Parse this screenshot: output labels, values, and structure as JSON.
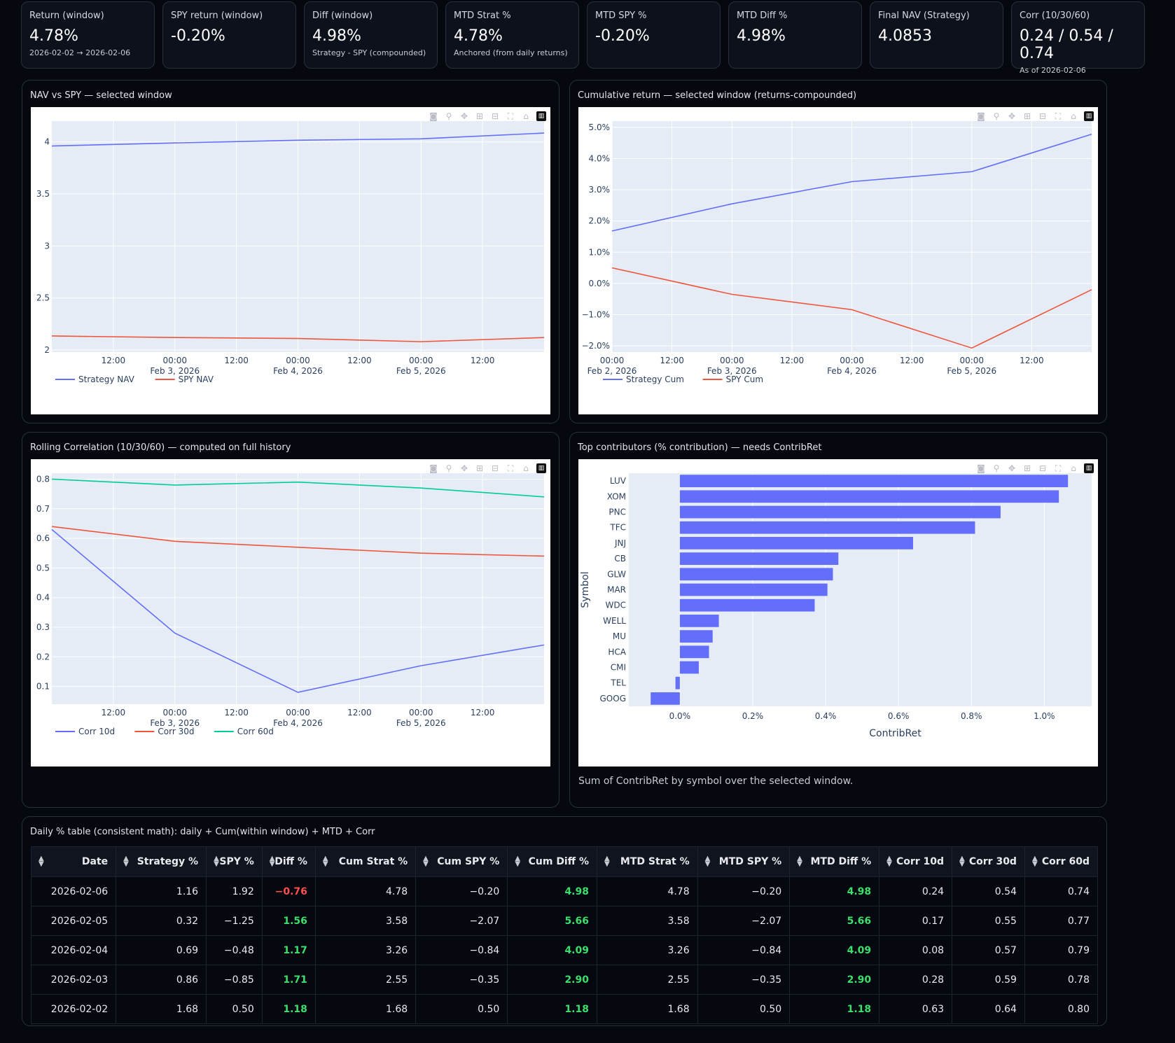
{
  "kpis": [
    {
      "label": "Return (window)",
      "value": "4.78%",
      "sub": "2026-02-02 → 2026-02-06"
    },
    {
      "label": "SPY return (window)",
      "value": "-0.20%",
      "sub": ""
    },
    {
      "label": "Diff (window)",
      "value": "4.98%",
      "sub": "Strategy - SPY (compounded)"
    },
    {
      "label": "MTD Strat %",
      "value": "4.78%",
      "sub": "Anchored (from daily returns)"
    },
    {
      "label": "MTD SPY %",
      "value": "-0.20%",
      "sub": ""
    },
    {
      "label": "MTD Diff %",
      "value": "4.98%",
      "sub": ""
    },
    {
      "label": "Final NAV (Strategy)",
      "value": "4.0853",
      "sub": ""
    },
    {
      "label": "Corr (10/30/60)",
      "value": "0.24 / 0.54 / 0.74",
      "sub": "As of 2026-02-06"
    }
  ],
  "panels": {
    "nav": {
      "title": "NAV vs SPY — selected window"
    },
    "cum": {
      "title": "Cumulative return — selected window (returns-compounded)"
    },
    "corr": {
      "title": "Rolling Correlation (10/30/60) — computed on full history"
    },
    "contrib": {
      "title": "Top contributors (% contribution) — needs ContribRet",
      "note": "Sum of ContribRet by symbol over the selected window."
    },
    "table": {
      "title": "Daily % table (consistent math): daily + Cum(within window) + MTD + Corr"
    }
  },
  "colors": {
    "blue": "#636efa",
    "red": "#ef553b",
    "green": "#00cc96",
    "pos": "#3dde6b",
    "neg": "#ff4f4f"
  },
  "modebar_icons": [
    "camera-icon",
    "zoom-icon",
    "pan-icon",
    "zoom-in-icon",
    "zoom-out-icon",
    "autoscale-icon",
    "home-icon",
    "plotly-logo-icon"
  ],
  "chart_data": [
    {
      "id": "nav",
      "type": "line",
      "x_hours": [
        0,
        24,
        48,
        72,
        96
      ],
      "x_tick_hours": [
        12,
        24,
        36,
        48,
        60,
        72,
        84
      ],
      "x_tick_labels": [
        [
          "12:00",
          ""
        ],
        [
          "00:00",
          "Feb 3, 2026"
        ],
        [
          "12:00",
          ""
        ],
        [
          "00:00",
          "Feb 4, 2026"
        ],
        [
          "12:00",
          ""
        ],
        [
          "00:00",
          "Feb 5, 2026"
        ],
        [
          "12:00",
          ""
        ]
      ],
      "xlim": [
        0,
        96
      ],
      "ylim": [
        1.98,
        4.2
      ],
      "y_ticks": [
        2,
        2.5,
        3,
        3.5,
        4
      ],
      "y_tick_labels": [
        "2",
        "2.5",
        "3",
        "3.5",
        "4"
      ],
      "series": [
        {
          "name": "Strategy NAV",
          "color": "#636efa",
          "values": [
            3.961,
            3.99,
            4.016,
            4.03,
            4.085
          ]
        },
        {
          "name": "SPY NAV",
          "color": "#ef553b",
          "values": [
            2.135,
            2.12,
            2.111,
            2.08,
            2.12
          ]
        }
      ]
    },
    {
      "id": "cum",
      "type": "line",
      "x_hours": [
        0,
        24,
        48,
        72,
        96
      ],
      "x_tick_hours": [
        0,
        12,
        24,
        36,
        48,
        60,
        72,
        84
      ],
      "x_tick_labels": [
        [
          "00:00",
          "Feb 2, 2026"
        ],
        [
          "12:00",
          ""
        ],
        [
          "00:00",
          "Feb 3, 2026"
        ],
        [
          "12:00",
          ""
        ],
        [
          "00:00",
          "Feb 4, 2026"
        ],
        [
          "12:00",
          ""
        ],
        [
          "00:00",
          "Feb 5, 2026"
        ],
        [
          "12:00",
          ""
        ]
      ],
      "xlim": [
        0,
        96
      ],
      "ylim": [
        -2.2,
        5.2
      ],
      "y_ticks": [
        -2,
        -1,
        0,
        1,
        2,
        3,
        4,
        5
      ],
      "y_tick_labels": [
        "−2.0%",
        "−1.0%",
        "0.0%",
        "1.0%",
        "2.0%",
        "3.0%",
        "4.0%",
        "5.0%"
      ],
      "series": [
        {
          "name": "Strategy Cum",
          "color": "#636efa",
          "values": [
            1.68,
            2.55,
            3.26,
            3.58,
            4.78
          ]
        },
        {
          "name": "SPY Cum",
          "color": "#ef553b",
          "values": [
            0.5,
            -0.35,
            -0.84,
            -2.07,
            -0.2
          ]
        }
      ]
    },
    {
      "id": "corr",
      "type": "line",
      "x_hours": [
        0,
        24,
        48,
        72,
        96
      ],
      "x_tick_hours": [
        12,
        24,
        36,
        48,
        60,
        72,
        84
      ],
      "x_tick_labels": [
        [
          "12:00",
          ""
        ],
        [
          "00:00",
          "Feb 3, 2026"
        ],
        [
          "12:00",
          ""
        ],
        [
          "00:00",
          "Feb 4, 2026"
        ],
        [
          "12:00",
          ""
        ],
        [
          "00:00",
          "Feb 5, 2026"
        ],
        [
          "12:00",
          ""
        ]
      ],
      "xlim": [
        0,
        96
      ],
      "ylim": [
        0.04,
        0.82
      ],
      "y_ticks": [
        0.1,
        0.2,
        0.3,
        0.4,
        0.5,
        0.6,
        0.7,
        0.8
      ],
      "y_tick_labels": [
        "0.1",
        "0.2",
        "0.3",
        "0.4",
        "0.5",
        "0.6",
        "0.7",
        "0.8"
      ],
      "series": [
        {
          "name": "Corr 10d",
          "color": "#636efa",
          "values": [
            0.63,
            0.28,
            0.08,
            0.17,
            0.24
          ]
        },
        {
          "name": "Corr 30d",
          "color": "#ef553b",
          "values": [
            0.64,
            0.59,
            0.57,
            0.55,
            0.54
          ]
        },
        {
          "name": "Corr 60d",
          "color": "#00cc96",
          "values": [
            0.8,
            0.78,
            0.79,
            0.77,
            0.74
          ]
        }
      ]
    },
    {
      "id": "contrib",
      "type": "bar",
      "orientation": "h",
      "categories": [
        "LUV",
        "XOM",
        "PNC",
        "TFC",
        "JNJ",
        "CB",
        "GLW",
        "MAR",
        "WDC",
        "WELL",
        "MU",
        "HCA",
        "CMI",
        "TEL",
        "GOOG"
      ],
      "values": [
        1.065,
        1.04,
        0.88,
        0.81,
        0.64,
        0.435,
        0.42,
        0.405,
        0.37,
        0.107,
        0.09,
        0.08,
        0.052,
        -0.012,
        -0.08
      ],
      "xlim": [
        -0.14,
        1.13
      ],
      "x_ticks": [
        0,
        0.2,
        0.4,
        0.6,
        0.8,
        1.0
      ],
      "x_tick_labels": [
        "0.0%",
        "0.2%",
        "0.4%",
        "0.6%",
        "0.8%",
        "1.0%"
      ],
      "xlabel": "ContribRet",
      "ylabel": "Symbol",
      "color": "#636efa"
    }
  ],
  "table": {
    "columns": [
      "Date",
      "Strategy %",
      "SPY %",
      "Diff %",
      "Cum Strat %",
      "Cum SPY %",
      "Cum Diff %",
      "MTD Strat %",
      "MTD SPY %",
      "MTD Diff %",
      "Corr 10d",
      "Corr 30d",
      "Corr 60d"
    ],
    "rows": [
      [
        "2026-02-06",
        "1.16",
        "1.92",
        "−0.76",
        "4.78",
        "−0.20",
        "4.98",
        "4.78",
        "−0.20",
        "4.98",
        "0.24",
        "0.54",
        "0.74"
      ],
      [
        "2026-02-05",
        "0.32",
        "−1.25",
        "1.56",
        "3.58",
        "−2.07",
        "5.66",
        "3.58",
        "−2.07",
        "5.66",
        "0.17",
        "0.55",
        "0.77"
      ],
      [
        "2026-02-04",
        "0.69",
        "−0.48",
        "1.17",
        "3.26",
        "−0.84",
        "4.09",
        "3.26",
        "−0.84",
        "4.09",
        "0.08",
        "0.57",
        "0.79"
      ],
      [
        "2026-02-03",
        "0.86",
        "−0.85",
        "1.71",
        "2.55",
        "−0.35",
        "2.90",
        "2.55",
        "−0.35",
        "2.90",
        "0.28",
        "0.59",
        "0.78"
      ],
      [
        "2026-02-02",
        "1.68",
        "0.50",
        "1.18",
        "1.68",
        "0.50",
        "1.18",
        "1.68",
        "0.50",
        "1.18",
        "0.63",
        "0.64",
        "0.80"
      ]
    ]
  }
}
